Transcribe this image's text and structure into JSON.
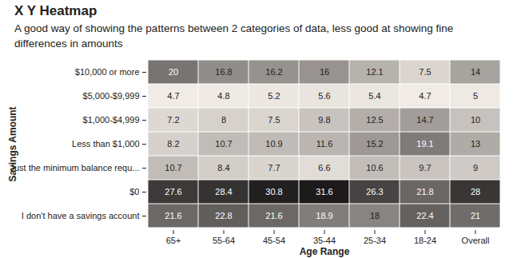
{
  "chart_data": {
    "type": "heatmap",
    "title": "X Y Heatmap",
    "subtitle": "A good way of showing the patterns between 2 categories of data, less good at showing fine differences in amounts",
    "x_label": "Age Range",
    "y_label": "Savings Amount",
    "x_categories": [
      "65+",
      "55-64",
      "45-54",
      "35-44",
      "25-34",
      "18-24",
      "Overall"
    ],
    "y_categories": [
      "$10,000 or more",
      "$5,000-$9,999",
      "$1,000-$4,999",
      "Less than $1,000",
      "Just the minimum balance requ...",
      "$0",
      "I don't have a savings account"
    ],
    "values": [
      [
        20,
        16.8,
        16.2,
        16,
        12.1,
        7.5,
        14
      ],
      [
        4.7,
        4.8,
        5.2,
        5.6,
        5.4,
        4.7,
        5
      ],
      [
        7.2,
        8,
        7.5,
        9.8,
        12.5,
        14.7,
        10
      ],
      [
        8.2,
        10.7,
        10.9,
        11.6,
        15.2,
        19.1,
        13
      ],
      [
        10.7,
        8.4,
        7.7,
        6.6,
        10.6,
        9.7,
        9
      ],
      [
        27.6,
        28.4,
        30.8,
        31.6,
        26.3,
        21.8,
        28
      ],
      [
        21.6,
        22.8,
        21.6,
        18.9,
        18,
        22.4,
        21
      ]
    ],
    "data_labels": true
  }
}
